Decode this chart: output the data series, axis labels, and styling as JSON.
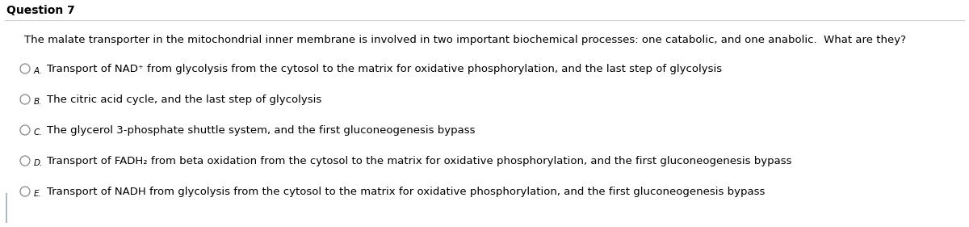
{
  "title": "Question 7",
  "question_text": "The malate transporter in the mitochondrial inner membrane is involved in two important biochemical processes: one catabolic, and one anabolic.  What are they?",
  "options": [
    {
      "label": "A.",
      "text": "Transport of NAD⁺ from glycolysis from the cytosol to the matrix for oxidative phosphorylation, and the last step of glycolysis"
    },
    {
      "label": "B.",
      "text": "The citric acid cycle, and the last step of glycolysis"
    },
    {
      "label": "C.",
      "text": "The glycerol 3-phosphate shuttle system, and the first gluconeogenesis bypass"
    },
    {
      "label": "D.",
      "text": "Transport of FADH₂ from beta oxidation from the cytosol to the matrix for oxidative phosphorylation, and the first gluconeogenesis bypass"
    },
    {
      "label": "E.",
      "text": "Transport of NADH from glycolysis from the cytosol to the matrix for oxidative phosphorylation, and the first gluconeogenesis bypass"
    }
  ],
  "background_color": "#ffffff",
  "title_color": "#000000",
  "question_color": "#000000",
  "option_text_color": "#000000",
  "title_fontsize": 10,
  "question_fontsize": 9.5,
  "option_fontsize": 9.5,
  "label_fontsize": 7.5,
  "circle_color": "#888888",
  "top_line_color": "#cccccc",
  "left_bar_color": "#b0b8c8"
}
